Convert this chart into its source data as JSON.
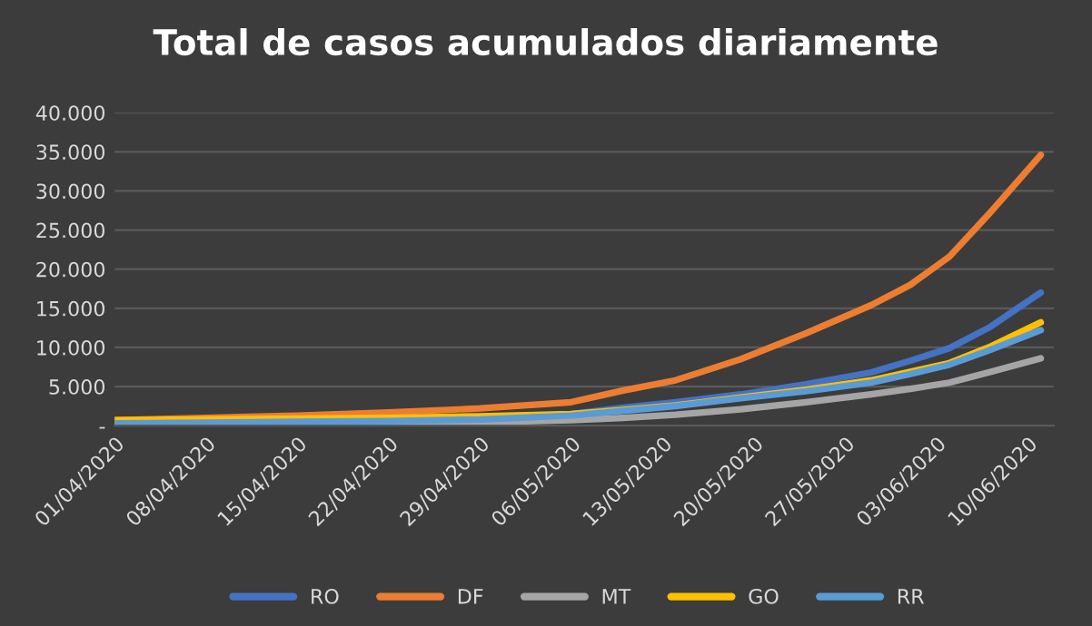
{
  "chart_data": {
    "type": "line",
    "title": "Total de casos acumulados diariamente",
    "x": [
      "2020-04-01",
      "2020-04-08",
      "2020-04-15",
      "2020-04-22",
      "2020-04-29",
      "2020-05-06",
      "2020-05-10",
      "2020-05-14",
      "2020-05-19",
      "2020-05-24",
      "2020-05-29",
      "2020-06-01",
      "2020-06-04",
      "2020-06-07",
      "2020-06-11"
    ],
    "series": [
      {
        "name": "RO",
        "color": "#4472c4",
        "values": [
          200,
          300,
          400,
          600,
          900,
          1500,
          2300,
          3000,
          4000,
          5300,
          6800,
          8300,
          9900,
          12500,
          17000
        ]
      },
      {
        "name": "DF",
        "color": "#ed7d31",
        "values": [
          700,
          1000,
          1300,
          1700,
          2200,
          3000,
          4500,
          5800,
          8500,
          11800,
          15400,
          18000,
          21600,
          27000,
          34600
        ]
      },
      {
        "name": "MT",
        "color": "#a5a5a5",
        "values": [
          100,
          150,
          200,
          300,
          400,
          700,
          1000,
          1400,
          2100,
          3000,
          4000,
          4700,
          5500,
          6800,
          8600
        ]
      },
      {
        "name": "GO",
        "color": "#ffc000",
        "values": [
          700,
          800,
          900,
          1000,
          1200,
          1500,
          2000,
          2600,
          3600,
          4600,
          5800,
          6900,
          8000,
          10000,
          13200
        ]
      },
      {
        "name": "RR",
        "color": "#5b9bd5",
        "values": [
          300,
          400,
          500,
          600,
          800,
          1300,
          1900,
          2500,
          3500,
          4400,
          5500,
          6600,
          7800,
          9600,
          12200
        ]
      }
    ],
    "xlim": [
      "2020-04-01",
      "2020-06-12"
    ],
    "xticks": [
      {
        "value": "2020-04-01",
        "label": "01/04/2020"
      },
      {
        "value": "2020-04-08",
        "label": "08/04/2020"
      },
      {
        "value": "2020-04-15",
        "label": "15/04/2020"
      },
      {
        "value": "2020-04-22",
        "label": "22/04/2020"
      },
      {
        "value": "2020-04-29",
        "label": "29/04/2020"
      },
      {
        "value": "2020-05-06",
        "label": "06/05/2020"
      },
      {
        "value": "2020-05-13",
        "label": "13/05/2020"
      },
      {
        "value": "2020-05-20",
        "label": "20/05/2020"
      },
      {
        "value": "2020-05-27",
        "label": "27/05/2020"
      },
      {
        "value": "2020-06-03",
        "label": "03/06/2020"
      },
      {
        "value": "2020-06-10",
        "label": "10/06/2020"
      }
    ],
    "ylim": [
      0,
      40000
    ],
    "yticks": [
      {
        "value": 0,
        "label": "-"
      },
      {
        "value": 5000,
        "label": "5.000"
      },
      {
        "value": 10000,
        "label": "10.000"
      },
      {
        "value": 15000,
        "label": "15.000"
      },
      {
        "value": 20000,
        "label": "20.000"
      },
      {
        "value": 25000,
        "label": "25.000"
      },
      {
        "value": 30000,
        "label": "30.000"
      },
      {
        "value": 35000,
        "label": "35.000"
      },
      {
        "value": 40000,
        "label": "40.000"
      }
    ],
    "grid": "y",
    "legend": "bottom",
    "marker": "none",
    "line_style": "solid"
  }
}
